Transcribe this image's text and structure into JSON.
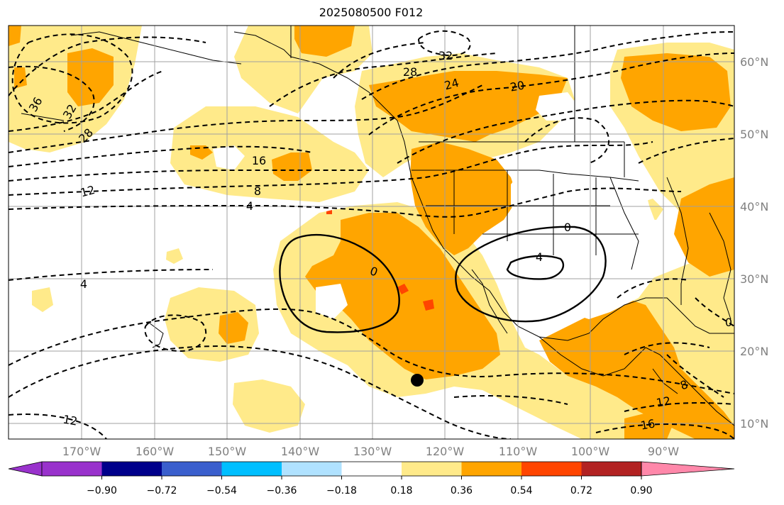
{
  "title": "2025080500 F012",
  "colors": {
    "light_yellow": "#ffea8a",
    "orange": "#ffa500",
    "red_orange": "#ff4500",
    "grid": "#a0a0a0",
    "colorbar": [
      "#9932cc",
      "#00008b",
      "#3a5fcd",
      "#00bfff",
      "#b0e2ff",
      "#ffffff",
      "#ffea8a",
      "#ffa500",
      "#ff4500",
      "#b22222",
      "#ff88aa"
    ]
  },
  "lat_labels": [
    "60°N",
    "50°N",
    "40°N",
    "30°N",
    "20°N",
    "10°N"
  ],
  "lon_labels": [
    "170°W",
    "160°W",
    "150°W",
    "140°W",
    "130°W",
    "120°W",
    "110°W",
    "100°W",
    "90°W"
  ],
  "colorbar_labels": [
    "−0.90",
    "−0.72",
    "−0.54",
    "−0.36",
    "−0.18",
    "0.18",
    "0.36",
    "0.54",
    "0.72",
    "0.90"
  ],
  "contour_labels": [
    "36",
    "32",
    "28",
    "12",
    "16",
    "8",
    "4",
    "32",
    "28",
    "24",
    "20",
    "0",
    "4",
    "0",
    "4",
    "12",
    "8",
    "12",
    "16",
    "0"
  ]
}
